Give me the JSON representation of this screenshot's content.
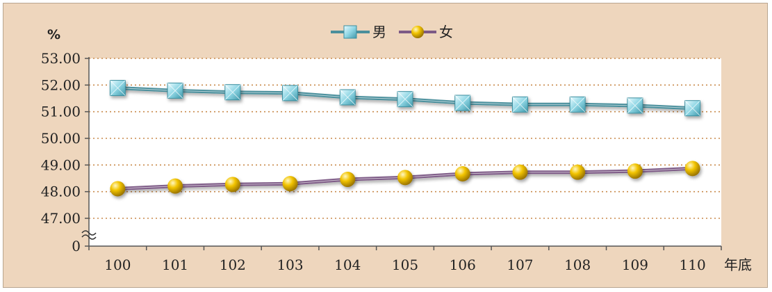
{
  "chart_data": {
    "type": "line",
    "ylabel": "%",
    "xlabel": "年底",
    "categories": [
      "100",
      "101",
      "102",
      "103",
      "104",
      "105",
      "106",
      "107",
      "108",
      "109",
      "110"
    ],
    "series": [
      {
        "name": "男",
        "values": [
          51.89,
          51.79,
          51.73,
          51.7,
          51.54,
          51.47,
          51.33,
          51.27,
          51.27,
          51.23,
          51.13
        ],
        "color": "#5fb7c8",
        "line_color": "#4a8f9c",
        "marker": "square"
      },
      {
        "name": "女",
        "values": [
          48.11,
          48.21,
          48.27,
          48.3,
          48.46,
          48.53,
          48.67,
          48.73,
          48.73,
          48.77,
          48.87
        ],
        "color": "#f2c400",
        "line_color": "#7d5a86",
        "marker": "circle"
      }
    ],
    "ylim": [
      47.0,
      53.0
    ],
    "yticks": [
      "53.00",
      "52.00",
      "51.00",
      "50.00",
      "49.00",
      "48.00",
      "47.00",
      "0"
    ],
    "axis_break": true,
    "grid": "dotted",
    "legend_position": "top-center",
    "background": "#eed6bd",
    "plot_background": "#ffffff",
    "grid_color": "#c8894a"
  }
}
